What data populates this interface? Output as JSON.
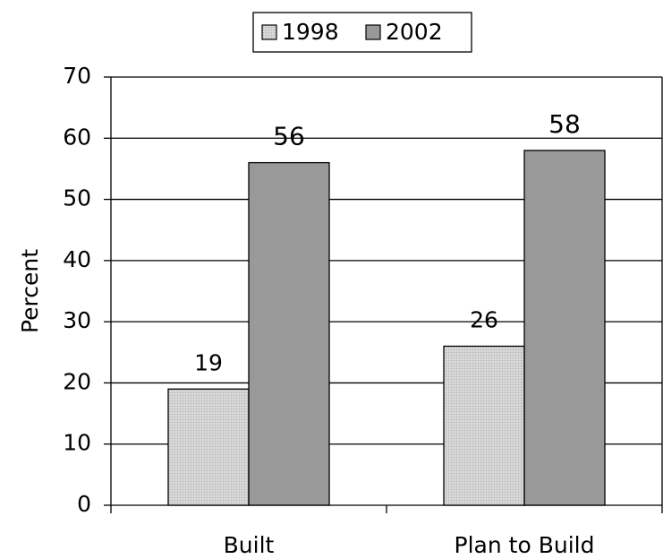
{
  "chart_data": {
    "type": "bar",
    "y_label": "Percent",
    "categories": [
      "Built",
      "Plan to Build"
    ],
    "series": [
      {
        "name": "1998",
        "color": "#d6d6d6",
        "values": [
          19,
          26
        ]
      },
      {
        "name": "2002",
        "color": "#999999",
        "values": [
          56,
          58
        ]
      }
    ],
    "ylim": [
      0,
      70
    ],
    "yticks": [
      0,
      10,
      20,
      30,
      40,
      50,
      60,
      70
    ],
    "grid": true,
    "legend": "top"
  }
}
